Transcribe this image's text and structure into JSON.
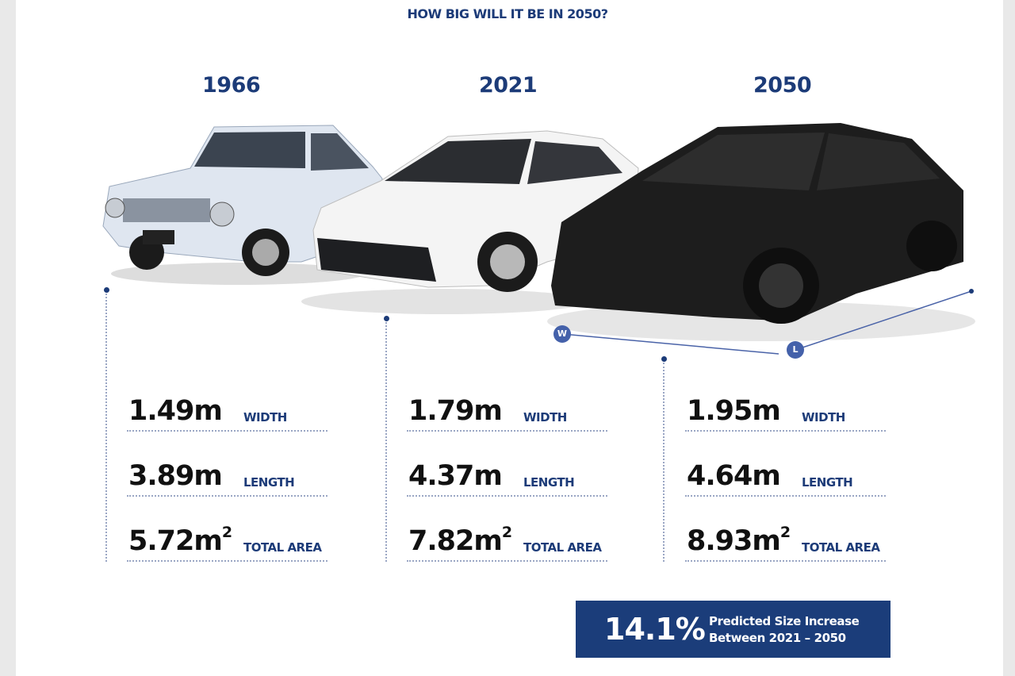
{
  "title": "HOW BIG WILL IT BE IN 2050?",
  "columns": [
    {
      "year": "1966",
      "width": "1.49m",
      "length": "3.89m",
      "area": "5.72m",
      "area_unit": "2"
    },
    {
      "year": "2021",
      "width": "1.79m",
      "length": "4.37m",
      "area": "7.82m",
      "area_unit": "2"
    },
    {
      "year": "2050",
      "width": "1.95m",
      "length": "4.64m",
      "area": "8.93m",
      "area_unit": "2"
    }
  ],
  "labels": {
    "width": "WIDTH",
    "length": "LENGTH",
    "area": "TOTAL AREA"
  },
  "dimension_markers": {
    "w": "W",
    "l": "L"
  },
  "summary": {
    "percent": "14.1%",
    "line1": "Predicted Size Increase",
    "line2": "Between 2021 – 2050"
  },
  "colors": {
    "navy": "#1c3b78",
    "box": "#1b3d7a",
    "car_1966": "#dfe6f0",
    "car_2021": "#f4f4f4",
    "car_2050": "#1d1d1d"
  }
}
